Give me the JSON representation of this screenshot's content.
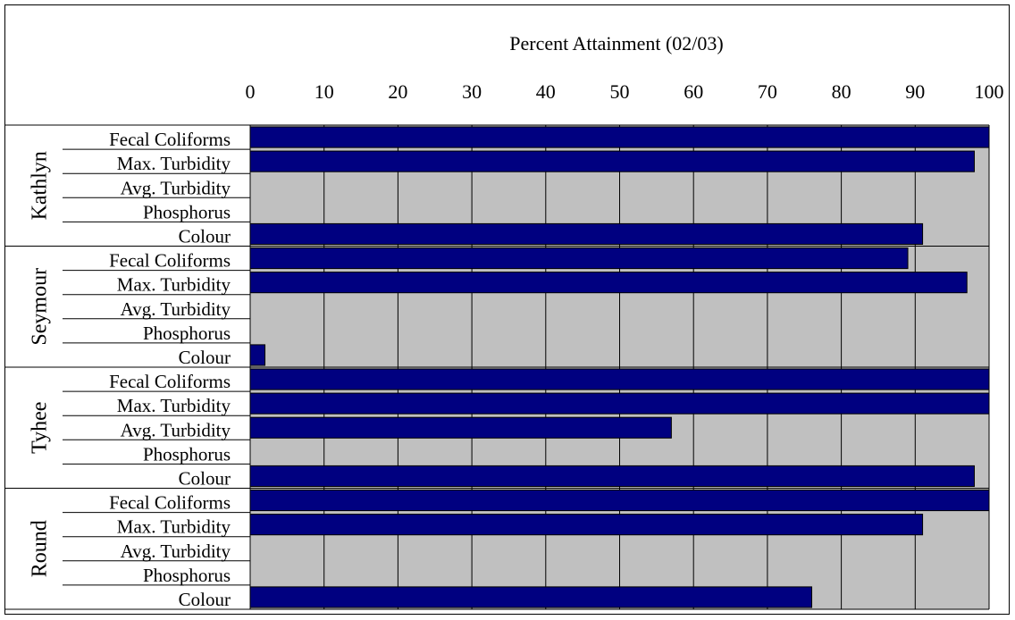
{
  "chart_data": {
    "type": "bar",
    "orientation": "horizontal",
    "title": "Percent Attainment (02/03)",
    "xlim": [
      0,
      100
    ],
    "x_ticks": [
      "0",
      "10",
      "20",
      "30",
      "40",
      "50",
      "60",
      "70",
      "80",
      "90",
      "100"
    ],
    "grid": true,
    "colors": {
      "bar": "#000080",
      "plot_background": "#c0c0c0"
    },
    "groups": [
      {
        "name": "Kathlyn",
        "categories": [
          "Fecal Coliforms",
          "Max. Turbidity",
          "Avg. Turbidity",
          "Phosphorus",
          "Colour"
        ],
        "values": [
          100,
          98,
          null,
          null,
          91
        ]
      },
      {
        "name": "Seymour",
        "categories": [
          "Fecal Coliforms",
          "Max. Turbidity",
          "Avg. Turbidity",
          "Phosphorus",
          "Colour"
        ],
        "values": [
          89,
          97,
          null,
          null,
          2
        ]
      },
      {
        "name": "Tyhee",
        "categories": [
          "Fecal Coliforms",
          "Max. Turbidity",
          "Avg. Turbidity",
          "Phosphorus",
          "Colour"
        ],
        "values": [
          100,
          100,
          57,
          null,
          98
        ]
      },
      {
        "name": "Round",
        "categories": [
          "Fecal Coliforms",
          "Max. Turbidity",
          "Avg. Turbidity",
          "Phosphorus",
          "Colour"
        ],
        "values": [
          100,
          91,
          null,
          null,
          76
        ]
      }
    ]
  }
}
